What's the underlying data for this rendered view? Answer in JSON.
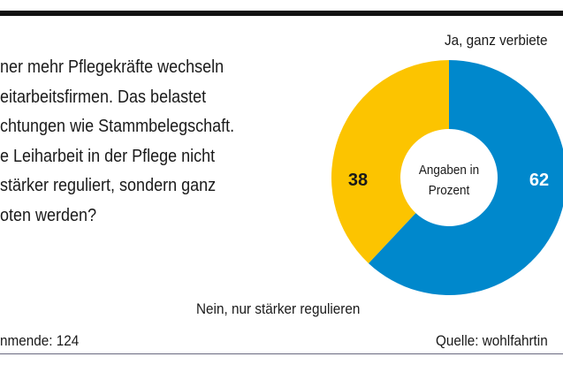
{
  "question_lines": [
    "ner mehr Pflegekräfte wechseln",
    "eitarbeitsfirmen. Das belastet",
    "chtungen wie Stammbelegschaft.",
    "e Leiharbeit in der Pflege nicht",
    "stärker reguliert, sondern ganz",
    "oten werden?"
  ],
  "footer": {
    "votes": "nmende: 124",
    "source": "Quelle: wohlfahrtin"
  },
  "chart_data": {
    "type": "pie",
    "donut": true,
    "center_label": [
      "Angaben in",
      "Prozent"
    ],
    "slices": [
      {
        "name": "Ja, ganz verbieten",
        "label": "Ja, ganz verbiete",
        "value": 62,
        "value_label": "62",
        "color": "#0088cc"
      },
      {
        "name": "Nein, nur stärker regulieren",
        "label": "Nein, nur stärker regulieren",
        "value": 38,
        "value_label": "38",
        "color": "#fcc400"
      }
    ]
  }
}
